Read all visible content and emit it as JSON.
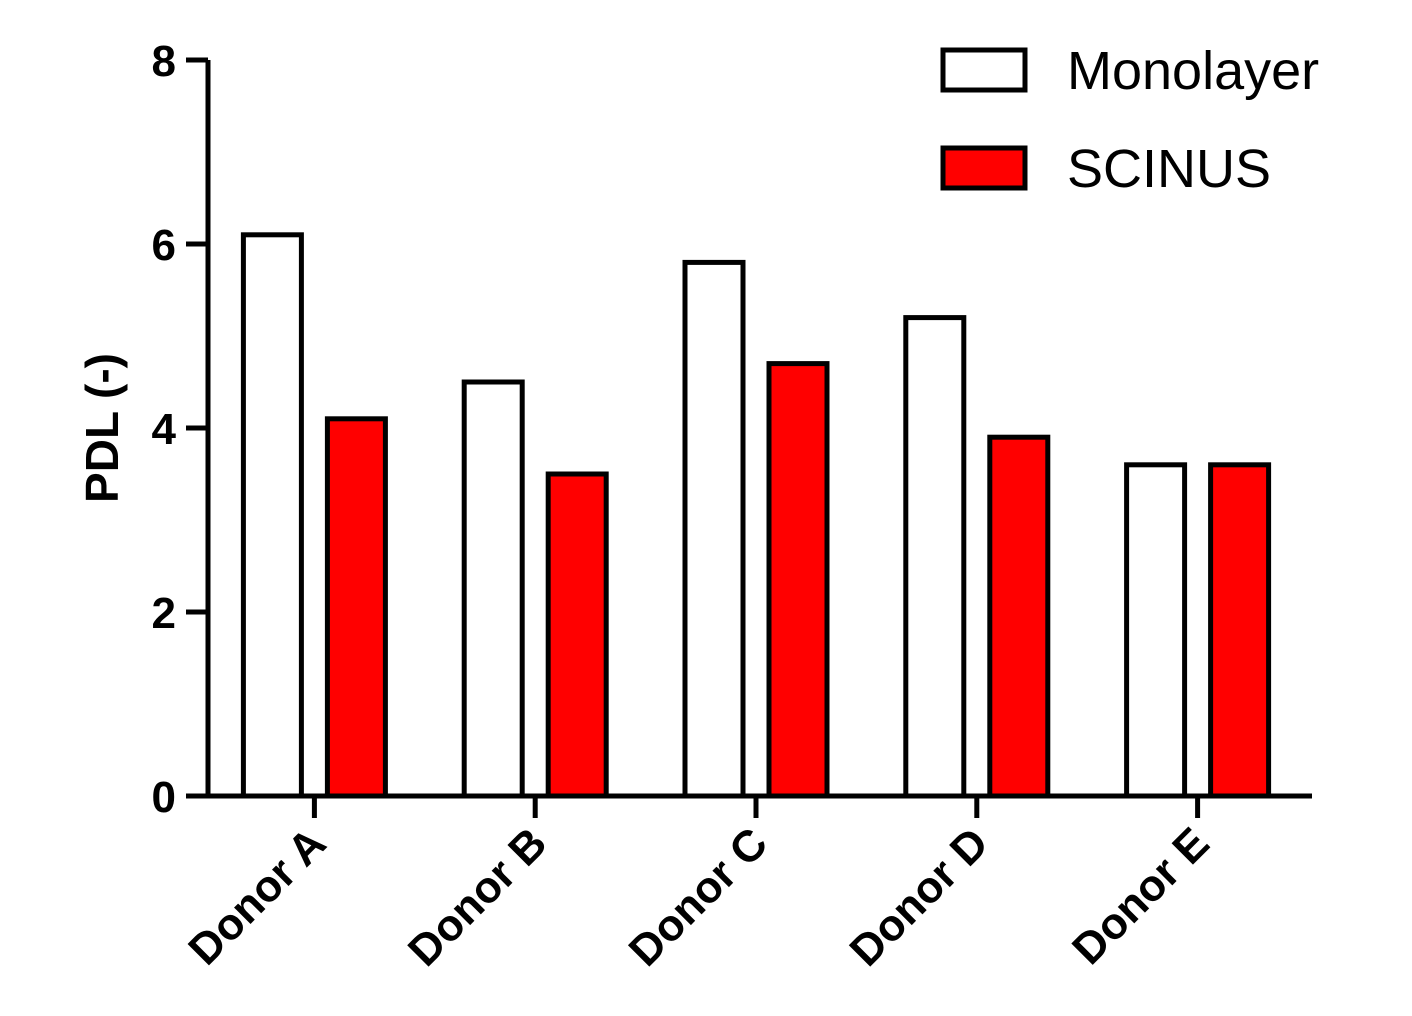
{
  "chart_data": {
    "type": "bar",
    "title": "",
    "xlabel": "",
    "ylabel": "PDL (-)",
    "ylim": [
      0,
      8
    ],
    "yticks": [
      0,
      2,
      4,
      6,
      8
    ],
    "categories": [
      "Donor A",
      "Donor B",
      "Donor C",
      "Donor D",
      "Donor E"
    ],
    "series": [
      {
        "name": "Monolayer",
        "values": [
          6.1,
          4.5,
          5.8,
          5.2,
          3.6
        ],
        "color": "#ffffff"
      },
      {
        "name": "SCINUS",
        "values": [
          4.1,
          3.5,
          4.7,
          3.9,
          3.6
        ],
        "color": "#ff0000"
      }
    ],
    "legend": {
      "position": "top-right",
      "entries": [
        "Monolayer",
        "SCINUS"
      ]
    },
    "grid": false
  }
}
